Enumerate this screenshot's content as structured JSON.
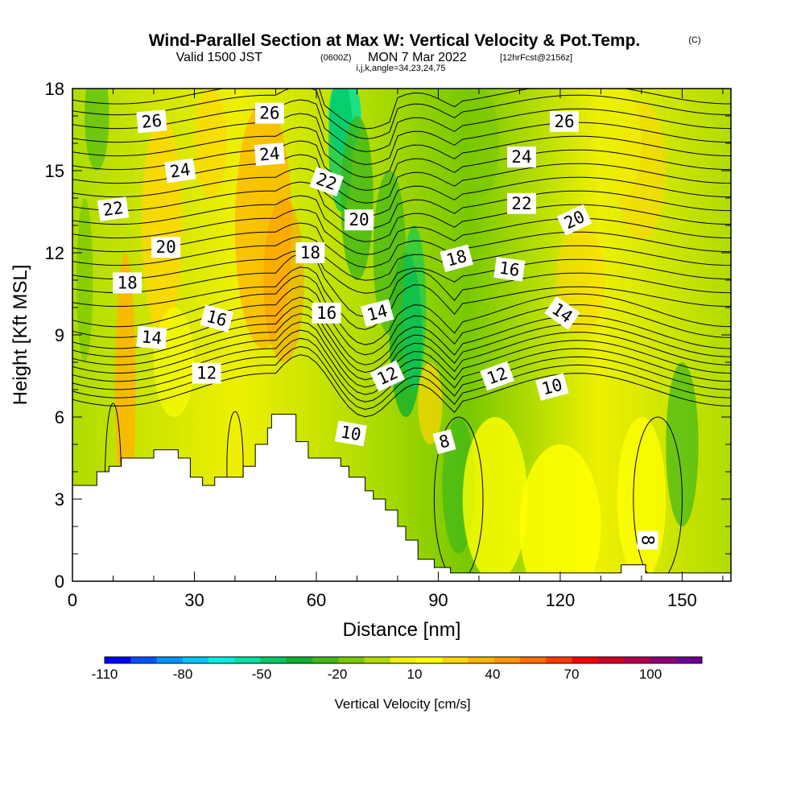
{
  "chart_data": {
    "type": "contour",
    "title": "Wind-Parallel Section at Max W: Vertical Velocity & Pot.Temp.",
    "title_unit": "(C)",
    "subtitle_main": "Valid 1500 JST",
    "subtitle_z": "(0600Z)",
    "subtitle_date": "MON 7 Mar 2022",
    "subtitle_fcst": "[12hrFcst@2156z]",
    "subtitle_2": "i,j,k,angle=34,23,24,75",
    "xlabel": "Distance [nm]",
    "ylabel": "Height [Kft MSL]",
    "xlim": [
      0,
      162
    ],
    "ylim": [
      0,
      18
    ],
    "xticks": [
      0,
      30,
      60,
      90,
      120,
      150
    ],
    "yticks": [
      0,
      3,
      6,
      9,
      12,
      15,
      18
    ],
    "colorbar": {
      "title": "Vertical Velocity [cm/s]",
      "labels": [
        "-110",
        "-80",
        "-50",
        "-20",
        "10",
        "40",
        "70",
        "100"
      ],
      "colors": [
        "#0000ff",
        "#0050ff",
        "#0096ff",
        "#00c8ff",
        "#00f0e0",
        "#00e0a0",
        "#00c864",
        "#10b030",
        "#40b818",
        "#78c800",
        "#b0dc00",
        "#eef000",
        "#ffff00",
        "#ffd700",
        "#ffb400",
        "#ff9600",
        "#ff6e00",
        "#ff3c00",
        "#ff0000",
        "#d20028",
        "#b40050",
        "#8c0078",
        "#6e0096"
      ]
    },
    "terrain": [
      [
        0,
        3.5
      ],
      [
        6,
        3.5
      ],
      [
        6,
        4
      ],
      [
        9,
        4
      ],
      [
        9,
        4.2
      ],
      [
        12,
        4.2
      ],
      [
        12,
        4.5
      ],
      [
        20,
        4.5
      ],
      [
        20,
        4.8
      ],
      [
        26,
        4.8
      ],
      [
        26,
        4.5
      ],
      [
        29,
        4.5
      ],
      [
        29,
        3.8
      ],
      [
        32,
        3.8
      ],
      [
        32,
        3.5
      ],
      [
        35,
        3.5
      ],
      [
        35,
        3.8
      ],
      [
        42,
        3.8
      ],
      [
        42,
        4.2
      ],
      [
        45,
        4.2
      ],
      [
        45,
        5
      ],
      [
        48,
        5
      ],
      [
        48,
        5.6
      ],
      [
        49,
        5.6
      ],
      [
        49,
        6.1
      ],
      [
        55,
        6.1
      ],
      [
        55,
        5.1
      ],
      [
        58,
        5.1
      ],
      [
        58,
        4.5
      ],
      [
        66,
        4.5
      ],
      [
        66,
        4.2
      ],
      [
        68,
        4.2
      ],
      [
        68,
        3.8
      ],
      [
        72,
        3.8
      ],
      [
        72,
        3.3
      ],
      [
        74,
        3.3
      ],
      [
        74,
        3
      ],
      [
        77,
        3
      ],
      [
        77,
        2.6
      ],
      [
        80,
        2.6
      ],
      [
        80,
        2
      ],
      [
        82,
        2
      ],
      [
        82,
        1.5
      ],
      [
        85,
        1.5
      ],
      [
        85,
        0.8
      ],
      [
        89,
        0.8
      ],
      [
        89,
        0.5
      ],
      [
        93,
        0.5
      ],
      [
        93,
        0.3
      ],
      [
        135,
        0.3
      ],
      [
        135,
        0.6
      ],
      [
        141,
        0.6
      ],
      [
        141,
        0.3
      ],
      [
        162,
        0.3
      ]
    ],
    "contour_labels": [
      {
        "text": "26",
        "x": 19.5,
        "y": 16.8,
        "angle": -5
      },
      {
        "text": "26",
        "x": 48.5,
        "y": 17.1,
        "angle": 0
      },
      {
        "text": "26",
        "x": 121,
        "y": 16.8,
        "angle": 0
      },
      {
        "text": "24",
        "x": 26.5,
        "y": 15.0,
        "angle": -8
      },
      {
        "text": "24",
        "x": 48.5,
        "y": 15.6,
        "angle": -5
      },
      {
        "text": "24",
        "x": 110.5,
        "y": 15.5,
        "angle": 0
      },
      {
        "text": "22",
        "x": 10,
        "y": 13.6,
        "angle": -8
      },
      {
        "text": "22",
        "x": 62.5,
        "y": 14.6,
        "angle": 20
      },
      {
        "text": "22",
        "x": 110.5,
        "y": 13.8,
        "angle": 0
      },
      {
        "text": "20",
        "x": 70.5,
        "y": 13.2,
        "angle": 0
      },
      {
        "text": "20",
        "x": 23,
        "y": 12.2,
        "angle": 0
      },
      {
        "text": "20",
        "x": 123.5,
        "y": 13.2,
        "angle": -25
      },
      {
        "text": "18",
        "x": 58.5,
        "y": 12.0,
        "angle": 0
      },
      {
        "text": "18",
        "x": 13.5,
        "y": 10.9,
        "angle": 0
      },
      {
        "text": "18",
        "x": 94.5,
        "y": 11.8,
        "angle": -15
      },
      {
        "text": "16",
        "x": 107.5,
        "y": 11.4,
        "angle": 8
      },
      {
        "text": "16",
        "x": 35.5,
        "y": 9.6,
        "angle": 15
      },
      {
        "text": "16",
        "x": 62.5,
        "y": 9.8,
        "angle": 0
      },
      {
        "text": "14",
        "x": 75,
        "y": 9.8,
        "angle": -15
      },
      {
        "text": "14",
        "x": 120.5,
        "y": 9.8,
        "angle": 35
      },
      {
        "text": "14",
        "x": 19.5,
        "y": 8.9,
        "angle": 5
      },
      {
        "text": "12",
        "x": 33,
        "y": 7.6,
        "angle": 0
      },
      {
        "text": "12",
        "x": 77.5,
        "y": 7.5,
        "angle": -25
      },
      {
        "text": "12",
        "x": 104.5,
        "y": 7.5,
        "angle": -20
      },
      {
        "text": "10",
        "x": 118,
        "y": 7.1,
        "angle": -15
      },
      {
        "text": "10",
        "x": 68.5,
        "y": 5.4,
        "angle": 10
      },
      {
        "text": "8",
        "x": 91.5,
        "y": 5.1,
        "angle": -15
      },
      {
        "text": "8",
        "x": 141.5,
        "y": 1.5,
        "angle": 90
      }
    ]
  }
}
